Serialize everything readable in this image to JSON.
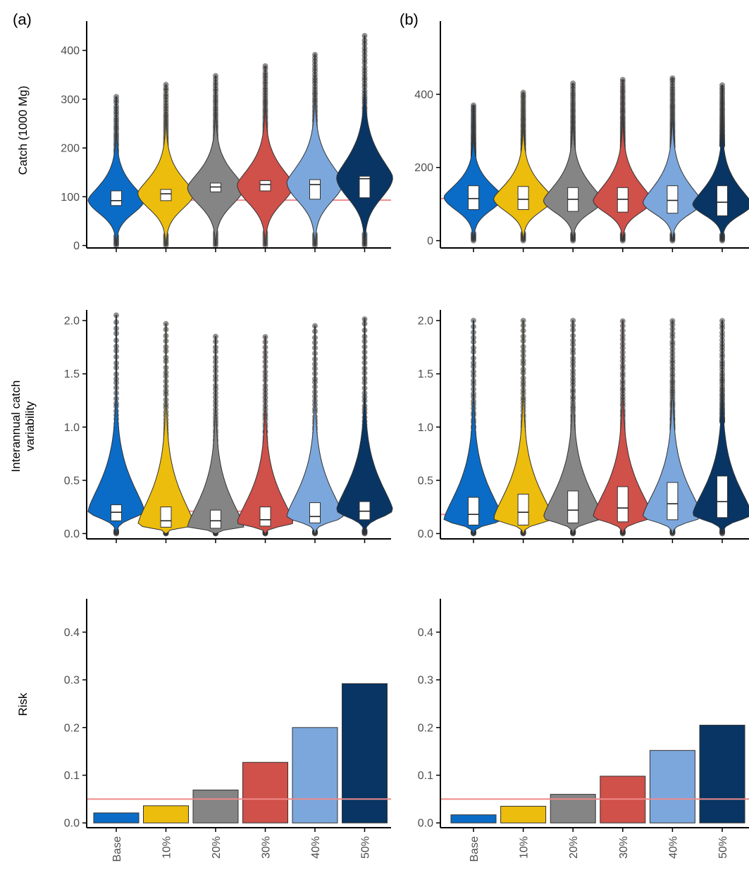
{
  "figure": {
    "panel_labels": [
      "(a)",
      "(b)"
    ],
    "colors": {
      "Base": "#0a6cc6",
      "10%": "#ecbd0c",
      "20%": "#858585",
      "30%": "#d0504a",
      "40%": "#7ba7dc",
      "50%": "#083563",
      "reference_line": "#f08a8a",
      "outlier": "#333333"
    }
  },
  "chart_data": [
    {
      "id": "a-catch",
      "type": "violin",
      "panel": "(a)",
      "ylabel": "Catch (1000 Mg)",
      "yticks": [
        0,
        100,
        200,
        300,
        400
      ],
      "ylim": [
        -5,
        460
      ],
      "categories": [
        "Base",
        "10%",
        "20%",
        "30%",
        "40%",
        "50%"
      ],
      "reference_line": 93,
      "series": [
        {
          "min": 0,
          "max": 305,
          "q1": 82,
          "median": 92,
          "q3": 112,
          "mode": 94,
          "dense_outliers_from": 145
        },
        {
          "min": 0,
          "max": 330,
          "q1": 92,
          "median": 106,
          "q3": 115,
          "mode": 108,
          "dense_outliers_from": 165
        },
        {
          "min": 0,
          "max": 348,
          "q1": 110,
          "median": 120,
          "q3": 128,
          "mode": 120,
          "dense_outliers_from": 180
        },
        {
          "min": 0,
          "max": 368,
          "q1": 112,
          "median": 125,
          "q3": 133,
          "mode": 125,
          "dense_outliers_from": 200
        },
        {
          "min": 0,
          "max": 392,
          "q1": 95,
          "median": 125,
          "q3": 135,
          "mode": 130,
          "dense_outliers_from": 210
        },
        {
          "min": 0,
          "max": 430,
          "q1": 98,
          "median": 137,
          "q3": 142,
          "mode": 140,
          "dense_outliers_from": 215
        }
      ]
    },
    {
      "id": "b-catch",
      "type": "violin",
      "panel": "(b)",
      "ylabel": "",
      "yticks": [
        0,
        200,
        400
      ],
      "ylim": [
        -20,
        600
      ],
      "categories": [
        "Base",
        "10%",
        "20%",
        "30%",
        "40%",
        "50%"
      ],
      "reference_line": 115,
      "series": [
        {
          "min": 0,
          "max": 370,
          "q1": 85,
          "median": 115,
          "q3": 150,
          "mode": 120,
          "dense_outliers_from": 230
        },
        {
          "min": 0,
          "max": 405,
          "q1": 85,
          "median": 113,
          "q3": 148,
          "mode": 115,
          "dense_outliers_from": 230
        },
        {
          "min": 0,
          "max": 430,
          "q1": 80,
          "median": 113,
          "q3": 145,
          "mode": 110,
          "dense_outliers_from": 235
        },
        {
          "min": 0,
          "max": 440,
          "q1": 78,
          "median": 113,
          "q3": 145,
          "mode": 110,
          "dense_outliers_from": 250
        },
        {
          "min": 0,
          "max": 445,
          "q1": 75,
          "median": 110,
          "q3": 150,
          "mode": 105,
          "dense_outliers_from": 255
        },
        {
          "min": 0,
          "max": 425,
          "q1": 68,
          "median": 105,
          "q3": 150,
          "mode": 100,
          "dense_outliers_from": 260
        }
      ]
    },
    {
      "id": "a-iav",
      "type": "violin",
      "panel": "(a)",
      "ylabel": "Interannual catch variability",
      "yticks": [
        0.0,
        0.5,
        1.0,
        1.5,
        2.0
      ],
      "ylim": [
        -0.05,
        2.1
      ],
      "categories": [
        "Base",
        "10%",
        "20%",
        "30%",
        "40%",
        "50%"
      ],
      "reference_line": 0.21,
      "series": [
        {
          "min": 0,
          "max": 2.05,
          "q1": 0.12,
          "median": 0.2,
          "q3": 0.27,
          "mode": 0.21,
          "dense_outliers_from": 0.55
        },
        {
          "min": 0,
          "max": 1.97,
          "q1": 0.06,
          "median": 0.12,
          "q3": 0.25,
          "mode": 0.08,
          "dense_outliers_from": 0.6
        },
        {
          "min": 0,
          "max": 1.85,
          "q1": 0.05,
          "median": 0.12,
          "q3": 0.22,
          "mode": 0.06,
          "dense_outliers_from": 0.6
        },
        {
          "min": 0,
          "max": 1.85,
          "q1": 0.07,
          "median": 0.13,
          "q3": 0.25,
          "mode": 0.1,
          "dense_outliers_from": 0.6
        },
        {
          "min": 0,
          "max": 1.95,
          "q1": 0.1,
          "median": 0.16,
          "q3": 0.29,
          "mode": 0.16,
          "dense_outliers_from": 0.6
        },
        {
          "min": 0,
          "max": 2.02,
          "q1": 0.13,
          "median": 0.21,
          "q3": 0.3,
          "mode": 0.22,
          "dense_outliers_from": 0.6
        }
      ]
    },
    {
      "id": "b-iav",
      "type": "violin",
      "panel": "(b)",
      "ylabel": "",
      "yticks": [
        0.0,
        0.5,
        1.0,
        1.5,
        2.0
      ],
      "ylim": [
        -0.05,
        2.1
      ],
      "categories": [
        "Base",
        "10%",
        "20%",
        "30%",
        "40%",
        "50%"
      ],
      "reference_line": 0.18,
      "series": [
        {
          "min": 0,
          "max": 2.0,
          "q1": 0.08,
          "median": 0.18,
          "q3": 0.34,
          "mode": 0.13,
          "dense_outliers_from": 0.68
        },
        {
          "min": 0,
          "max": 2.0,
          "q1": 0.08,
          "median": 0.2,
          "q3": 0.37,
          "mode": 0.14,
          "dense_outliers_from": 0.75
        },
        {
          "min": 0,
          "max": 2.0,
          "q1": 0.1,
          "median": 0.22,
          "q3": 0.4,
          "mode": 0.15,
          "dense_outliers_from": 0.82
        },
        {
          "min": 0,
          "max": 2.0,
          "q1": 0.11,
          "median": 0.24,
          "q3": 0.44,
          "mode": 0.16,
          "dense_outliers_from": 0.85
        },
        {
          "min": 0,
          "max": 2.0,
          "q1": 0.13,
          "median": 0.28,
          "q3": 0.48,
          "mode": 0.16,
          "dense_outliers_from": 0.98
        },
        {
          "min": 0,
          "max": 2.0,
          "q1": 0.15,
          "median": 0.3,
          "q3": 0.54,
          "mode": 0.18,
          "dense_outliers_from": 1.05
        }
      ]
    },
    {
      "id": "a-risk",
      "type": "bar",
      "panel": "(a)",
      "ylabel": "Risk",
      "yticks": [
        0.0,
        0.1,
        0.2,
        0.3,
        0.4
      ],
      "ylim": [
        -0.01,
        0.47
      ],
      "categories": [
        "Base",
        "10%",
        "20%",
        "30%",
        "40%",
        "50%"
      ],
      "reference_line": 0.05,
      "values": [
        0.021,
        0.036,
        0.069,
        0.127,
        0.2,
        0.292
      ]
    },
    {
      "id": "b-risk",
      "type": "bar",
      "panel": "(b)",
      "ylabel": "",
      "yticks": [
        0.0,
        0.1,
        0.2,
        0.3,
        0.4
      ],
      "ylim": [
        -0.01,
        0.47
      ],
      "categories": [
        "Base",
        "10%",
        "20%",
        "30%",
        "40%",
        "50%"
      ],
      "reference_line": 0.05,
      "values": [
        0.017,
        0.035,
        0.06,
        0.098,
        0.152,
        0.205
      ]
    }
  ]
}
